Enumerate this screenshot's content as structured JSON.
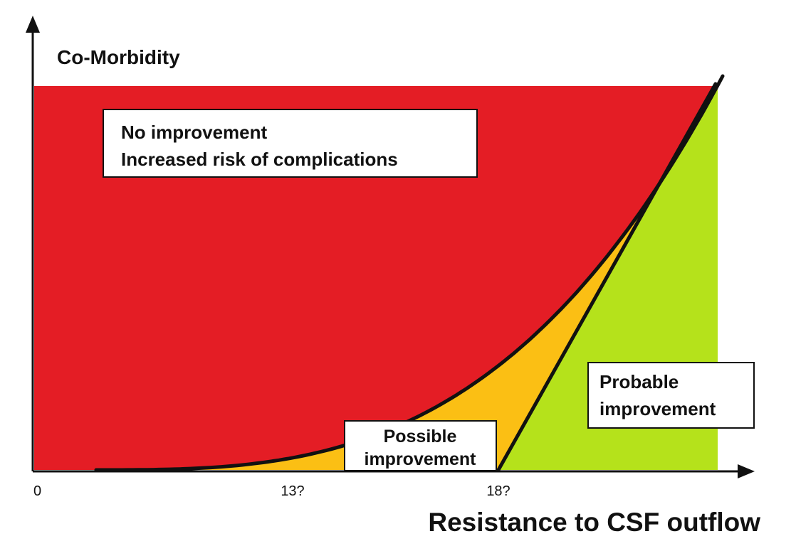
{
  "chart_data": {
    "type": "area",
    "title": "",
    "ylabel": "Co-Morbidity",
    "xlabel": "Resistance to CSF outflow",
    "x_ticks": [
      "0",
      "13?",
      "18?"
    ],
    "regions": [
      {
        "name": "no-improvement",
        "label_lines": [
          "No improvement",
          "Increased risk of complications"
        ],
        "color": "#e41d25"
      },
      {
        "name": "possible-improvement",
        "label_lines": [
          "Possible",
          "improvement"
        ],
        "color": "#fbbf14"
      },
      {
        "name": "probable-improvement",
        "label_lines": [
          "Probable",
          "improvement"
        ],
        "color": "#b5e21b"
      }
    ],
    "boundary_colors": {
      "curve": "#111111",
      "axis": "#111111"
    }
  }
}
